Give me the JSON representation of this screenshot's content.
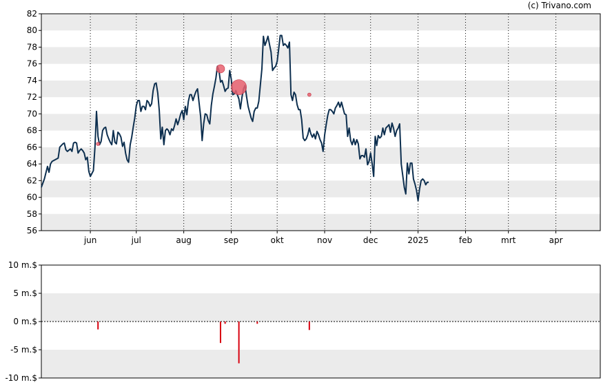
{
  "credit": "(c) Trivano.com",
  "colors": {
    "price_line": "#0d2f4f",
    "band": "#ebebeb",
    "marker": "#e8606e",
    "volume_bar": "#d8000f"
  },
  "chart_data": [
    {
      "type": "line",
      "title": "",
      "xlabel": "",
      "ylabel": "",
      "ylim": [
        56,
        82
      ],
      "yticks": [
        56,
        58,
        60,
        62,
        64,
        66,
        68,
        70,
        72,
        74,
        76,
        78,
        80,
        82
      ],
      "grid": true,
      "month_labels": [
        {
          "label": "jun",
          "day": 24
        },
        {
          "label": "jul",
          "day": 54
        },
        {
          "label": "aug",
          "day": 85
        },
        {
          "label": "sep",
          "day": 116
        },
        {
          "label": "okt",
          "day": 146
        },
        {
          "label": "nov",
          "day": 177
        },
        {
          "label": "dec",
          "day": 207
        },
        {
          "label": "2025",
          "day": 238
        },
        {
          "label": "feb",
          "day": 269
        },
        {
          "label": "mrt",
          "day": 297
        },
        {
          "label": "apr",
          "day": 328
        }
      ],
      "xlim": [
        -8,
        357
      ],
      "series": [
        {
          "points": [
            [
              -8,
              61.2
            ],
            [
              -6,
              62.2
            ],
            [
              -4,
              63.7
            ],
            [
              -3,
              63
            ],
            [
              -2,
              64
            ],
            [
              -1,
              64.3
            ],
            [
              1,
              64.5
            ],
            [
              3,
              64.7
            ],
            [
              4,
              66
            ],
            [
              6,
              66.4
            ],
            [
              7,
              66.5
            ],
            [
              8,
              65.7
            ],
            [
              9,
              65.5
            ],
            [
              11,
              65.8
            ],
            [
              12,
              65.5
            ],
            [
              13,
              66.5
            ],
            [
              14,
              66.6
            ],
            [
              15,
              66.5
            ],
            [
              16,
              65.3
            ],
            [
              17,
              65.6
            ],
            [
              18,
              65.8
            ],
            [
              19,
              65.6
            ],
            [
              20,
              65.3
            ],
            [
              21,
              64.5
            ],
            [
              22,
              64.8
            ],
            [
              23,
              63.1
            ],
            [
              24,
              62.5
            ],
            [
              26,
              63.2
            ],
            [
              27,
              66
            ],
            [
              28,
              70.3
            ],
            [
              29,
              67.3
            ],
            [
              30,
              66.3
            ],
            [
              31,
              66.7
            ],
            [
              32,
              68
            ],
            [
              33,
              68.3
            ],
            [
              34,
              68.4
            ],
            [
              35,
              67.5
            ],
            [
              36,
              67
            ],
            [
              37,
              66.6
            ],
            [
              38,
              66.3
            ],
            [
              39,
              68
            ],
            [
              40,
              66.6
            ],
            [
              41,
              66.4
            ],
            [
              42,
              67.8
            ],
            [
              43,
              67.6
            ],
            [
              44,
              67.2
            ],
            [
              45,
              66.1
            ],
            [
              46,
              66.6
            ],
            [
              47,
              65.3
            ],
            [
              48,
              64.5
            ],
            [
              49,
              64.2
            ],
            [
              50,
              66.3
            ],
            [
              51,
              67.2
            ],
            [
              52,
              68.4
            ],
            [
              53,
              69.5
            ],
            [
              54,
              71
            ],
            [
              55,
              71.6
            ],
            [
              56,
              71.6
            ],
            [
              57,
              70.3
            ],
            [
              58,
              70.9
            ],
            [
              59,
              70.9
            ],
            [
              60,
              70.5
            ],
            [
              61,
              71.6
            ],
            [
              62,
              71.4
            ],
            [
              63,
              70.9
            ],
            [
              64,
              71.2
            ],
            [
              65,
              72.8
            ],
            [
              66,
              73.6
            ],
            [
              67,
              73.7
            ],
            [
              68,
              72.5
            ],
            [
              69,
              70.4
            ],
            [
              70,
              67
            ],
            [
              71,
              68.4
            ],
            [
              72,
              66.3
            ],
            [
              73,
              68
            ],
            [
              74,
              68.2
            ],
            [
              75,
              68
            ],
            [
              76,
              67.5
            ],
            [
              77,
              68.2
            ],
            [
              78,
              68
            ],
            [
              79,
              68.6
            ],
            [
              80,
              69.4
            ],
            [
              81,
              68.7
            ],
            [
              82,
              69.3
            ],
            [
              83,
              70
            ],
            [
              84,
              70.4
            ],
            [
              85,
              69.3
            ],
            [
              86,
              70.9
            ],
            [
              87,
              69.9
            ],
            [
              88,
              71.5
            ],
            [
              89,
              72.3
            ],
            [
              90,
              72.3
            ],
            [
              91,
              71.6
            ],
            [
              92,
              72.2
            ],
            [
              93,
              72.7
            ],
            [
              94,
              73
            ],
            [
              95,
              71.3
            ],
            [
              96,
              69.7
            ],
            [
              97,
              66.8
            ],
            [
              98,
              68.8
            ],
            [
              99,
              70
            ],
            [
              100,
              69.9
            ],
            [
              101,
              69.2
            ],
            [
              102,
              68.8
            ],
            [
              103,
              71
            ],
            [
              104,
              72.4
            ],
            [
              105,
              73.3
            ],
            [
              106,
              74.3
            ],
            [
              107,
              75.7
            ],
            [
              108,
              75.2
            ],
            [
              109,
              73.8
            ],
            [
              110,
              74
            ],
            [
              111,
              73.4
            ],
            [
              112,
              72.7
            ],
            [
              113,
              73
            ],
            [
              114,
              73.1
            ],
            [
              115,
              75.2
            ],
            [
              116,
              74.2
            ],
            [
              117,
              72.3
            ],
            [
              118,
              72.4
            ],
            [
              119,
              72.8
            ],
            [
              120,
              72.3
            ],
            [
              121,
              71.8
            ],
            [
              122,
              70.6
            ],
            [
              123,
              72
            ],
            [
              124,
              73
            ],
            [
              125,
              73.4
            ],
            [
              126,
              72.1
            ],
            [
              127,
              70.9
            ],
            [
              128,
              70.2
            ],
            [
              129,
              69.5
            ],
            [
              130,
              69.1
            ],
            [
              131,
              70.3
            ],
            [
              132,
              70.7
            ],
            [
              133,
              70.7
            ],
            [
              134,
              71.5
            ],
            [
              135,
              73.4
            ],
            [
              136,
              75.4
            ],
            [
              137,
              79.3
            ],
            [
              138,
              78.2
            ],
            [
              139,
              78.7
            ],
            [
              140,
              79.3
            ],
            [
              141,
              78.3
            ],
            [
              142,
              77.4
            ],
            [
              143,
              75.2
            ],
            [
              144,
              75.5
            ],
            [
              145,
              75.7
            ],
            [
              146,
              76.3
            ],
            [
              147,
              77.8
            ],
            [
              148,
              79.4
            ],
            [
              149,
              79.4
            ],
            [
              150,
              78.2
            ],
            [
              151,
              78.4
            ],
            [
              152,
              78.2
            ],
            [
              153,
              77.9
            ],
            [
              154,
              78.6
            ],
            [
              155,
              72.3
            ],
            [
              156,
              71.6
            ],
            [
              157,
              72.6
            ],
            [
              158,
              72.3
            ],
            [
              159,
              71.1
            ],
            [
              160,
              70.5
            ],
            [
              161,
              70.5
            ],
            [
              162,
              69.3
            ],
            [
              163,
              67.1
            ],
            [
              164,
              66.8
            ],
            [
              165,
              67
            ],
            [
              166,
              67.5
            ],
            [
              167,
              68.3
            ],
            [
              168,
              67.6
            ],
            [
              169,
              67.2
            ],
            [
              170,
              67.6
            ],
            [
              171,
              67
            ],
            [
              172,
              67.9
            ],
            [
              173,
              67.5
            ],
            [
              174,
              66.9
            ],
            [
              175,
              66.5
            ],
            [
              176,
              65.5
            ],
            [
              177,
              67.5
            ],
            [
              178,
              68.7
            ],
            [
              179,
              69.8
            ],
            [
              180,
              70.5
            ],
            [
              181,
              70.5
            ],
            [
              182,
              70.3
            ],
            [
              183,
              70
            ],
            [
              184,
              70.7
            ],
            [
              185,
              71
            ],
            [
              186,
              71.4
            ],
            [
              187,
              70.8
            ],
            [
              188,
              71.4
            ],
            [
              189,
              70.7
            ],
            [
              190,
              70
            ],
            [
              191,
              69.9
            ],
            [
              192,
              67.3
            ],
            [
              193,
              68.3
            ],
            [
              194,
              66.8
            ],
            [
              195,
              66.3
            ],
            [
              196,
              67
            ],
            [
              197,
              66.3
            ],
            [
              198,
              66.9
            ],
            [
              199,
              66.4
            ],
            [
              200,
              64.6
            ],
            [
              201,
              65
            ],
            [
              202,
              65
            ],
            [
              203,
              64.8
            ],
            [
              204,
              65.8
            ],
            [
              205,
              63.9
            ],
            [
              206,
              64.3
            ],
            [
              207,
              65.3
            ],
            [
              208,
              64.1
            ],
            [
              209,
              62.5
            ],
            [
              210,
              67.3
            ],
            [
              211,
              66.2
            ],
            [
              212,
              67.4
            ],
            [
              213,
              67.1
            ],
            [
              214,
              67.3
            ],
            [
              215,
              68.3
            ],
            [
              216,
              67.5
            ],
            [
              217,
              68.3
            ],
            [
              218,
              68.5
            ],
            [
              219,
              68.7
            ],
            [
              220,
              67.8
            ],
            [
              221,
              68.9
            ],
            [
              222,
              68.3
            ],
            [
              223,
              67.3
            ],
            [
              224,
              68
            ],
            [
              225,
              68.3
            ],
            [
              226,
              68.8
            ],
            [
              227,
              64
            ],
            [
              228,
              62.6
            ],
            [
              229,
              61.2
            ],
            [
              230,
              60.4
            ],
            [
              231,
              64.1
            ],
            [
              232,
              62.8
            ],
            [
              233,
              64.1
            ],
            [
              234,
              64.1
            ],
            [
              235,
              62.2
            ],
            [
              236,
              61.6
            ],
            [
              237,
              60.8
            ],
            [
              238,
              59.6
            ],
            [
              239,
              61
            ],
            [
              240,
              62
            ],
            [
              241,
              62.2
            ],
            [
              242,
              62
            ],
            [
              243,
              61.5
            ],
            [
              244,
              61.8
            ],
            [
              245,
              61.8
            ]
          ]
        }
      ],
      "markers": [
        {
          "day": 29,
          "value": 66.4,
          "size": "small"
        },
        {
          "day": 109,
          "value": 75.4,
          "size": "medium"
        },
        {
          "day": 121,
          "value": 73.2,
          "size": "large"
        },
        {
          "day": 167,
          "value": 72.3,
          "size": "small"
        }
      ]
    },
    {
      "type": "bar",
      "title": "",
      "ylabel": "",
      "ylim": [
        -10,
        10
      ],
      "yticks": [
        10,
        5,
        0,
        -5,
        -10
      ],
      "ytick_labels": [
        "10 m.$",
        "5 m.$",
        "0 m.$",
        "-5 m.$",
        "-10 m.$"
      ],
      "grid": true,
      "bars": [
        {
          "day": 29,
          "value": -1.4
        },
        {
          "day": 109,
          "value": -3.8
        },
        {
          "day": 112,
          "value": -0.4
        },
        {
          "day": 121,
          "value": -7.4
        },
        {
          "day": 133,
          "value": -0.4
        },
        {
          "day": 167,
          "value": -1.5
        }
      ]
    }
  ]
}
